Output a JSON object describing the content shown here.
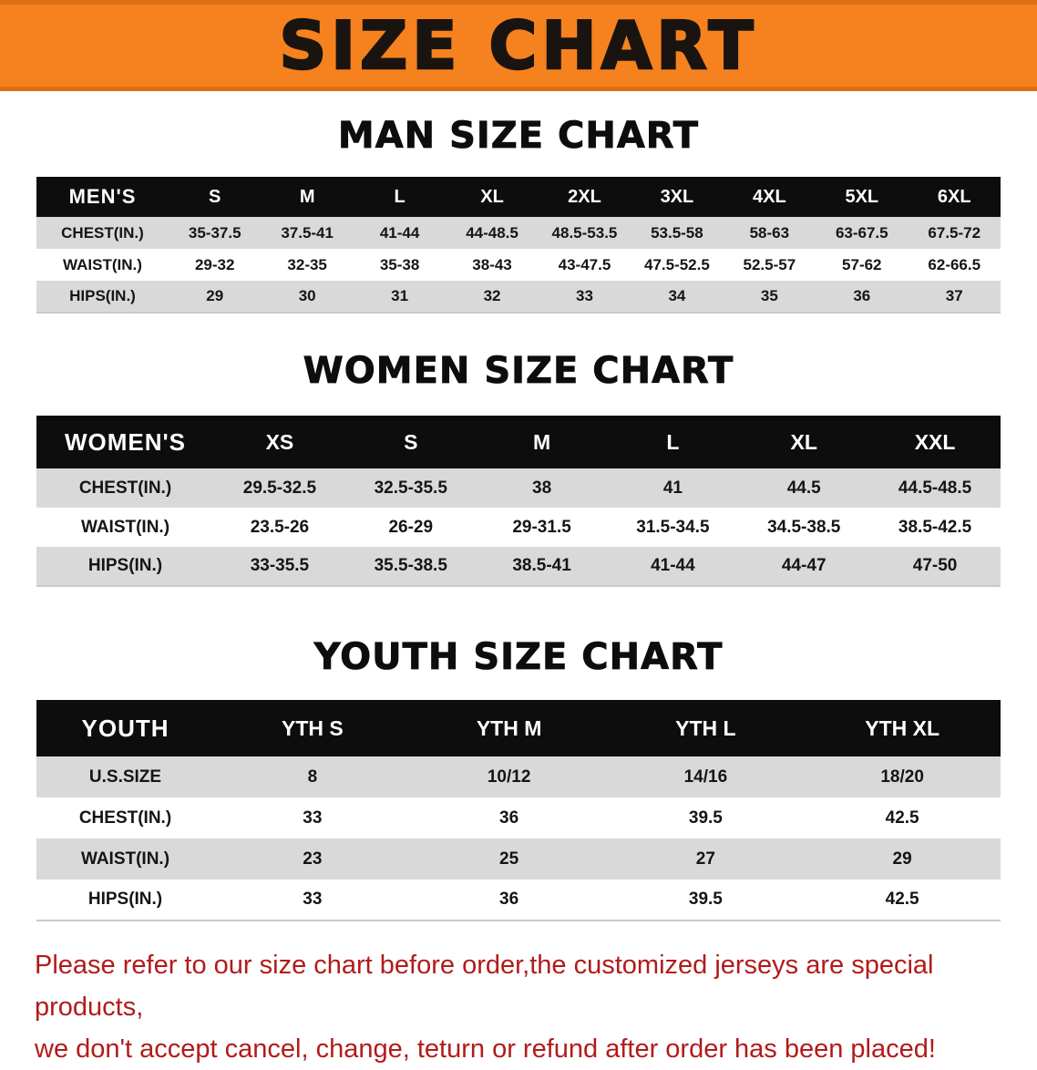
{
  "banner": {
    "title": "SIZE CHART",
    "bg_color": "#F5821F"
  },
  "colors": {
    "table_header_bg": "#0D0D0D",
    "row_stripe_gray": "#D9D9D9",
    "disclaimer_red": "#B21B1B"
  },
  "sections": [
    {
      "heading": "MAN SIZE CHART",
      "table": {
        "title": "MEN'S",
        "columns": [
          "S",
          "M",
          "L",
          "XL",
          "2XL",
          "3XL",
          "4XL",
          "5XL",
          "6XL"
        ],
        "rows": [
          {
            "label": "CHEST(IN.)",
            "values": [
              "35-37.5",
              "37.5-41",
              "41-44",
              "44-48.5",
              "48.5-53.5",
              "53.5-58",
              "58-63",
              "63-67.5",
              "67.5-72"
            ]
          },
          {
            "label": "WAIST(IN.)",
            "values": [
              "29-32",
              "32-35",
              "35-38",
              "38-43",
              "43-47.5",
              "47.5-52.5",
              "52.5-57",
              "57-62",
              "62-66.5"
            ]
          },
          {
            "label": "HIPS(IN.)",
            "values": [
              "29",
              "30",
              "31",
              "32",
              "33",
              "34",
              "35",
              "36",
              "37"
            ]
          }
        ]
      }
    },
    {
      "heading": "WOMEN SIZE CHART",
      "table": {
        "title": "WOMEN'S",
        "columns": [
          "XS",
          "S",
          "M",
          "L",
          "XL",
          "XXL"
        ],
        "rows": [
          {
            "label": "CHEST(IN.)",
            "values": [
              "29.5-32.5",
              "32.5-35.5",
              "38",
              "41",
              "44.5",
              "44.5-48.5"
            ]
          },
          {
            "label": "WAIST(IN.)",
            "values": [
              "23.5-26",
              "26-29",
              "29-31.5",
              "31.5-34.5",
              "34.5-38.5",
              "38.5-42.5"
            ]
          },
          {
            "label": "HIPS(IN.)",
            "values": [
              "33-35.5",
              "35.5-38.5",
              "38.5-41",
              "41-44",
              "44-47",
              "47-50"
            ]
          }
        ]
      }
    },
    {
      "heading": "YOUTH SIZE CHART",
      "table": {
        "title": "YOUTH",
        "columns": [
          "YTH S",
          "YTH M",
          "YTH L",
          "YTH XL"
        ],
        "rows": [
          {
            "label": "U.S.SIZE",
            "values": [
              "8",
              "10/12",
              "14/16",
              "18/20"
            ]
          },
          {
            "label": "CHEST(IN.)",
            "values": [
              "33",
              "36",
              "39.5",
              "42.5"
            ]
          },
          {
            "label": "WAIST(IN.)",
            "values": [
              "23",
              "25",
              "27",
              "29"
            ]
          },
          {
            "label": "HIPS(IN.)",
            "values": [
              "33",
              "36",
              "39.5",
              "42.5"
            ]
          }
        ]
      }
    }
  ],
  "disclaimer": {
    "line1": "Please refer to our size chart before order,the customized jerseys are special products,",
    "line2": "we don't accept cancel, change, teturn or refund after order has been placed!",
    "color": "#B21B1B"
  }
}
